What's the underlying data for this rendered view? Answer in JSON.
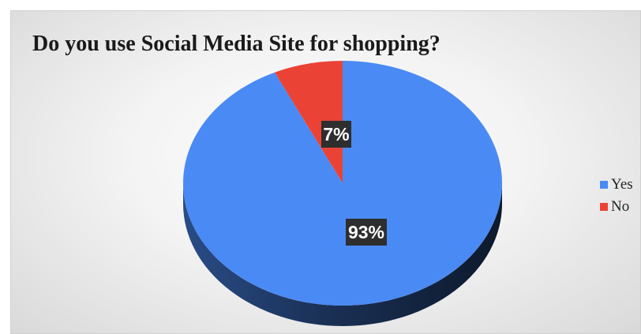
{
  "chart_data": {
    "type": "pie",
    "title": "Do you use Social Media Site for shopping?",
    "categories": [
      "Yes",
      "No"
    ],
    "values": [
      93,
      7
    ],
    "data_labels": [
      "93%",
      "7%"
    ],
    "colors": [
      "#4a8af4",
      "#ea4335"
    ],
    "legend_position": "right",
    "style": "3d"
  }
}
